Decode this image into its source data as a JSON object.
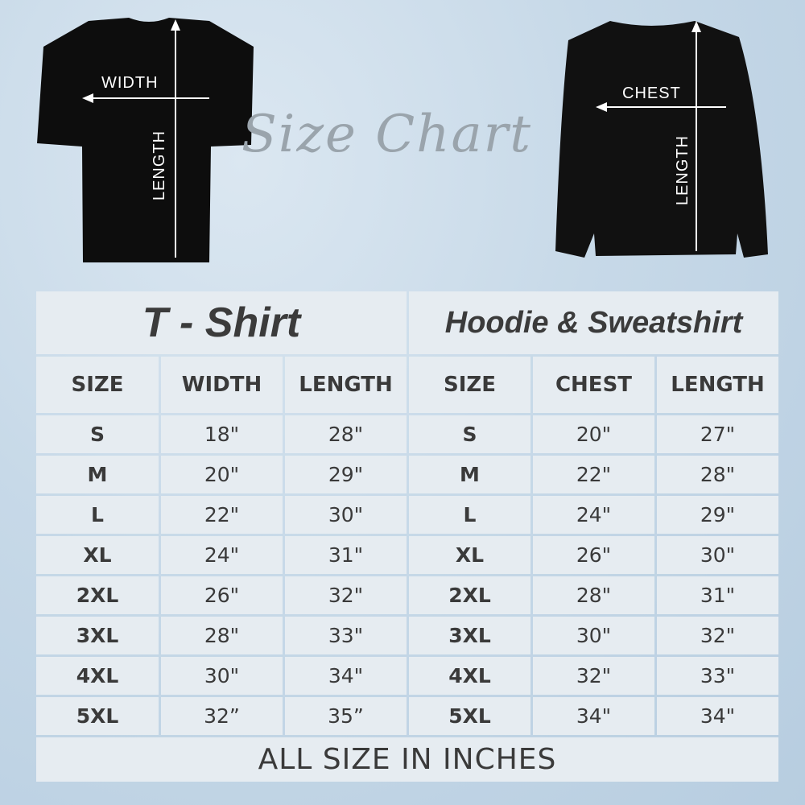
{
  "heading": "Size Chart",
  "tshirt_figure": {
    "width_label": "WIDTH",
    "length_label": "LENGTH"
  },
  "hoodie_figure": {
    "chest_label": "CHEST",
    "length_label": "LENGTH"
  },
  "tshirt": {
    "title": "T - Shirt",
    "columns": [
      "SIZE",
      "WIDTH",
      "LENGTH"
    ],
    "rows": [
      [
        "S",
        "18\"",
        "28\""
      ],
      [
        "M",
        "20\"",
        "29\""
      ],
      [
        "L",
        "22\"",
        "30\""
      ],
      [
        "XL",
        "24\"",
        "31\""
      ],
      [
        "2XL",
        "26\"",
        "32\""
      ],
      [
        "3XL",
        "28\"",
        "33\""
      ],
      [
        "4XL",
        "30\"",
        "34\""
      ],
      [
        "5XL",
        "32”",
        "35”"
      ]
    ]
  },
  "hoodie": {
    "title": "Hoodie & Sweatshirt",
    "columns": [
      "SIZE",
      "CHEST",
      "LENGTH"
    ],
    "rows": [
      [
        "S",
        "20\"",
        "27\""
      ],
      [
        "M",
        "22\"",
        "28\""
      ],
      [
        "L",
        "24\"",
        "29\""
      ],
      [
        "XL",
        "26\"",
        "30\""
      ],
      [
        "2XL",
        "28\"",
        "31\""
      ],
      [
        "3XL",
        "30\"",
        "32\""
      ],
      [
        "4XL",
        "32\"",
        "33\""
      ],
      [
        "5XL",
        "34\"",
        "34\""
      ]
    ]
  },
  "footer": "ALL SIZE IN INCHES"
}
